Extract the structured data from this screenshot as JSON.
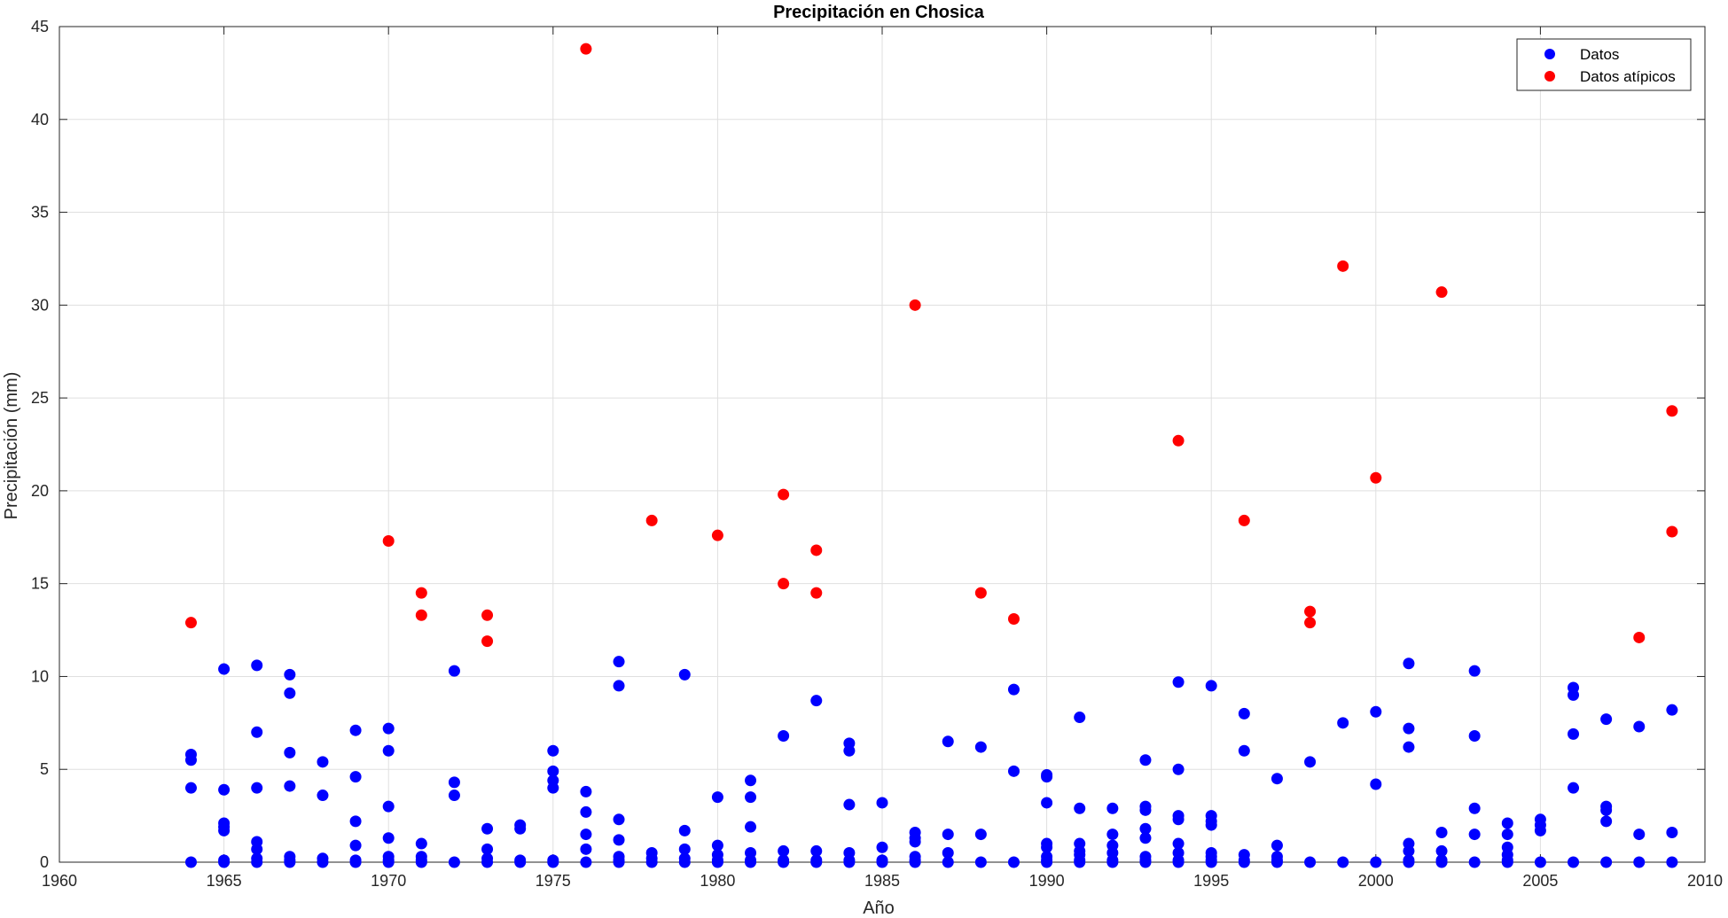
{
  "chart_data": {
    "type": "scatter",
    "title": "Precipitación en Chosica",
    "xlabel": "Año",
    "ylabel": "Precipitación (mm)",
    "xlim": [
      1960,
      2010
    ],
    "ylim": [
      0,
      45
    ],
    "xticks": [
      "1960",
      "1965",
      "1970",
      "1975",
      "1980",
      "1985",
      "1990",
      "1995",
      "2000",
      "2005",
      "2010"
    ],
    "yticks": [
      "0",
      "5",
      "10",
      "15",
      "20",
      "25",
      "30",
      "35",
      "40",
      "45"
    ],
    "grid": true,
    "legend_position": "top-right",
    "series": [
      {
        "name": "Datos",
        "color": "#0000ff",
        "points": [
          [
            1964,
            0
          ],
          [
            1964,
            4.0
          ],
          [
            1964,
            5.5
          ],
          [
            1964,
            5.8
          ],
          [
            1965,
            0
          ],
          [
            1965,
            0.1
          ],
          [
            1965,
            1.7
          ],
          [
            1965,
            1.9
          ],
          [
            1965,
            2.1
          ],
          [
            1965,
            3.9
          ],
          [
            1965,
            10.4
          ],
          [
            1966,
            0
          ],
          [
            1966,
            0.2
          ],
          [
            1966,
            0.7
          ],
          [
            1966,
            1.1
          ],
          [
            1966,
            4.0
          ],
          [
            1966,
            7.0
          ],
          [
            1966,
            10.6
          ],
          [
            1967,
            0
          ],
          [
            1967,
            0.1
          ],
          [
            1967,
            0.3
          ],
          [
            1967,
            4.1
          ],
          [
            1967,
            5.9
          ],
          [
            1967,
            9.1
          ],
          [
            1967,
            10.1
          ],
          [
            1968,
            0
          ],
          [
            1968,
            0.2
          ],
          [
            1968,
            3.6
          ],
          [
            1968,
            5.4
          ],
          [
            1969,
            0
          ],
          [
            1969,
            0.1
          ],
          [
            1969,
            0.9
          ],
          [
            1969,
            2.2
          ],
          [
            1969,
            4.6
          ],
          [
            1969,
            7.1
          ],
          [
            1970,
            0
          ],
          [
            1970,
            0.1
          ],
          [
            1970,
            0.3
          ],
          [
            1970,
            1.3
          ],
          [
            1970,
            3.0
          ],
          [
            1970,
            6.0
          ],
          [
            1970,
            7.2
          ],
          [
            1971,
            0
          ],
          [
            1971,
            0.1
          ],
          [
            1971,
            0.3
          ],
          [
            1971,
            1.0
          ],
          [
            1972,
            0
          ],
          [
            1972,
            3.6
          ],
          [
            1972,
            4.3
          ],
          [
            1972,
            10.3
          ],
          [
            1973,
            0
          ],
          [
            1973,
            0.2
          ],
          [
            1973,
            0.7
          ],
          [
            1973,
            1.8
          ],
          [
            1974,
            0
          ],
          [
            1974,
            0.1
          ],
          [
            1974,
            1.8
          ],
          [
            1974,
            2.0
          ],
          [
            1975,
            0
          ],
          [
            1975,
            0.1
          ],
          [
            1975,
            4.0
          ],
          [
            1975,
            4.4
          ],
          [
            1975,
            4.9
          ],
          [
            1975,
            6.0
          ],
          [
            1976,
            0
          ],
          [
            1976,
            0.7
          ],
          [
            1976,
            1.5
          ],
          [
            1976,
            2.7
          ],
          [
            1976,
            3.8
          ],
          [
            1977,
            0
          ],
          [
            1977,
            0.1
          ],
          [
            1977,
            0.3
          ],
          [
            1977,
            1.2
          ],
          [
            1977,
            2.3
          ],
          [
            1977,
            9.5
          ],
          [
            1977,
            10.8
          ],
          [
            1978,
            0
          ],
          [
            1978,
            0.2
          ],
          [
            1978,
            0.5
          ],
          [
            1979,
            0
          ],
          [
            1979,
            0.2
          ],
          [
            1979,
            0.7
          ],
          [
            1979,
            1.7
          ],
          [
            1979,
            10.1
          ],
          [
            1980,
            0
          ],
          [
            1980,
            0.1
          ],
          [
            1980,
            0.4
          ],
          [
            1980,
            0.9
          ],
          [
            1980,
            3.5
          ],
          [
            1981,
            0
          ],
          [
            1981,
            0.1
          ],
          [
            1981,
            0.5
          ],
          [
            1981,
            1.9
          ],
          [
            1981,
            3.5
          ],
          [
            1981,
            4.4
          ],
          [
            1982,
            0
          ],
          [
            1982,
            0.1
          ],
          [
            1982,
            0.6
          ],
          [
            1982,
            6.8
          ],
          [
            1983,
            0
          ],
          [
            1983,
            0.1
          ],
          [
            1983,
            0.6
          ],
          [
            1983,
            8.7
          ],
          [
            1984,
            0
          ],
          [
            1984,
            0.1
          ],
          [
            1984,
            0.5
          ],
          [
            1984,
            3.1
          ],
          [
            1984,
            6.0
          ],
          [
            1984,
            6.4
          ],
          [
            1985,
            0
          ],
          [
            1985,
            0.1
          ],
          [
            1985,
            0.8
          ],
          [
            1985,
            3.2
          ],
          [
            1986,
            0
          ],
          [
            1986,
            0.1
          ],
          [
            1986,
            0.3
          ],
          [
            1986,
            1.1
          ],
          [
            1986,
            1.3
          ],
          [
            1986,
            1.6
          ],
          [
            1987,
            0
          ],
          [
            1987,
            0.5
          ],
          [
            1987,
            1.5
          ],
          [
            1987,
            6.5
          ],
          [
            1988,
            0
          ],
          [
            1988,
            1.5
          ],
          [
            1988,
            6.2
          ],
          [
            1989,
            0
          ],
          [
            1989,
            4.9
          ],
          [
            1989,
            9.3
          ],
          [
            1990,
            0
          ],
          [
            1990,
            0.1
          ],
          [
            1990,
            0.3
          ],
          [
            1990,
            0.8
          ],
          [
            1990,
            1.0
          ],
          [
            1990,
            3.2
          ],
          [
            1990,
            4.6
          ],
          [
            1990,
            4.7
          ],
          [
            1991,
            0
          ],
          [
            1991,
            0.1
          ],
          [
            1991,
            0.4
          ],
          [
            1991,
            0.6
          ],
          [
            1991,
            1.0
          ],
          [
            1991,
            2.9
          ],
          [
            1991,
            7.8
          ],
          [
            1992,
            0
          ],
          [
            1992,
            0.1
          ],
          [
            1992,
            0.5
          ],
          [
            1992,
            0.9
          ],
          [
            1992,
            1.5
          ],
          [
            1992,
            2.9
          ],
          [
            1993,
            0
          ],
          [
            1993,
            0.1
          ],
          [
            1993,
            0.3
          ],
          [
            1993,
            1.3
          ],
          [
            1993,
            1.8
          ],
          [
            1993,
            2.8
          ],
          [
            1993,
            3.0
          ],
          [
            1993,
            5.5
          ],
          [
            1994,
            0
          ],
          [
            1994,
            0.1
          ],
          [
            1994,
            0.5
          ],
          [
            1994,
            1.0
          ],
          [
            1994,
            2.3
          ],
          [
            1994,
            2.5
          ],
          [
            1994,
            5.0
          ],
          [
            1994,
            9.7
          ],
          [
            1995,
            0
          ],
          [
            1995,
            0.1
          ],
          [
            1995,
            0.3
          ],
          [
            1995,
            0.5
          ],
          [
            1995,
            2.0
          ],
          [
            1995,
            2.2
          ],
          [
            1995,
            2.5
          ],
          [
            1995,
            9.5
          ],
          [
            1996,
            0
          ],
          [
            1996,
            0.1
          ],
          [
            1996,
            0.4
          ],
          [
            1996,
            6.0
          ],
          [
            1996,
            8.0
          ],
          [
            1997,
            0
          ],
          [
            1997,
            0.1
          ],
          [
            1997,
            0.3
          ],
          [
            1997,
            0.9
          ],
          [
            1997,
            4.5
          ],
          [
            1998,
            0
          ],
          [
            1998,
            5.4
          ],
          [
            1999,
            0
          ],
          [
            1999,
            7.5
          ],
          [
            2000,
            0
          ],
          [
            2000,
            4.2
          ],
          [
            2000,
            8.1
          ],
          [
            2001,
            0
          ],
          [
            2001,
            0.1
          ],
          [
            2001,
            0.6
          ],
          [
            2001,
            1.0
          ],
          [
            2001,
            6.2
          ],
          [
            2001,
            7.2
          ],
          [
            2001,
            10.7
          ],
          [
            2002,
            0
          ],
          [
            2002,
            0.1
          ],
          [
            2002,
            0.6
          ],
          [
            2002,
            1.6
          ],
          [
            2003,
            0
          ],
          [
            2003,
            1.5
          ],
          [
            2003,
            2.9
          ],
          [
            2003,
            6.8
          ],
          [
            2003,
            10.3
          ],
          [
            2004,
            0
          ],
          [
            2004,
            0.1
          ],
          [
            2004,
            0.4
          ],
          [
            2004,
            0.8
          ],
          [
            2004,
            1.5
          ],
          [
            2004,
            2.1
          ],
          [
            2005,
            0
          ],
          [
            2005,
            1.7
          ],
          [
            2005,
            2.0
          ],
          [
            2005,
            2.3
          ],
          [
            2006,
            0
          ],
          [
            2006,
            4.0
          ],
          [
            2006,
            6.9
          ],
          [
            2006,
            9.0
          ],
          [
            2006,
            9.4
          ],
          [
            2007,
            0
          ],
          [
            2007,
            2.2
          ],
          [
            2007,
            2.8
          ],
          [
            2007,
            3.0
          ],
          [
            2007,
            7.7
          ],
          [
            2008,
            0
          ],
          [
            2008,
            1.5
          ],
          [
            2008,
            7.3
          ],
          [
            2009,
            0
          ],
          [
            2009,
            1.6
          ],
          [
            2009,
            8.2
          ]
        ]
      },
      {
        "name": "Datos atípicos",
        "color": "#ff0000",
        "points": [
          [
            1964,
            12.9
          ],
          [
            1970,
            17.3
          ],
          [
            1971,
            14.5
          ],
          [
            1971,
            13.3
          ],
          [
            1973,
            13.3
          ],
          [
            1973,
            11.9
          ],
          [
            1976,
            43.8
          ],
          [
            1978,
            18.4
          ],
          [
            1980,
            17.6
          ],
          [
            1982,
            19.8
          ],
          [
            1982,
            15.0
          ],
          [
            1983,
            16.8
          ],
          [
            1983,
            14.5
          ],
          [
            1986,
            30.0
          ],
          [
            1988,
            14.5
          ],
          [
            1989,
            13.1
          ],
          [
            1994,
            22.7
          ],
          [
            1996,
            18.4
          ],
          [
            1998,
            13.5
          ],
          [
            1998,
            12.9
          ],
          [
            1999,
            32.1
          ],
          [
            2000,
            20.7
          ],
          [
            2002,
            30.7
          ],
          [
            2008,
            12.1
          ],
          [
            2009,
            24.3
          ],
          [
            2009,
            17.8
          ]
        ]
      }
    ]
  }
}
